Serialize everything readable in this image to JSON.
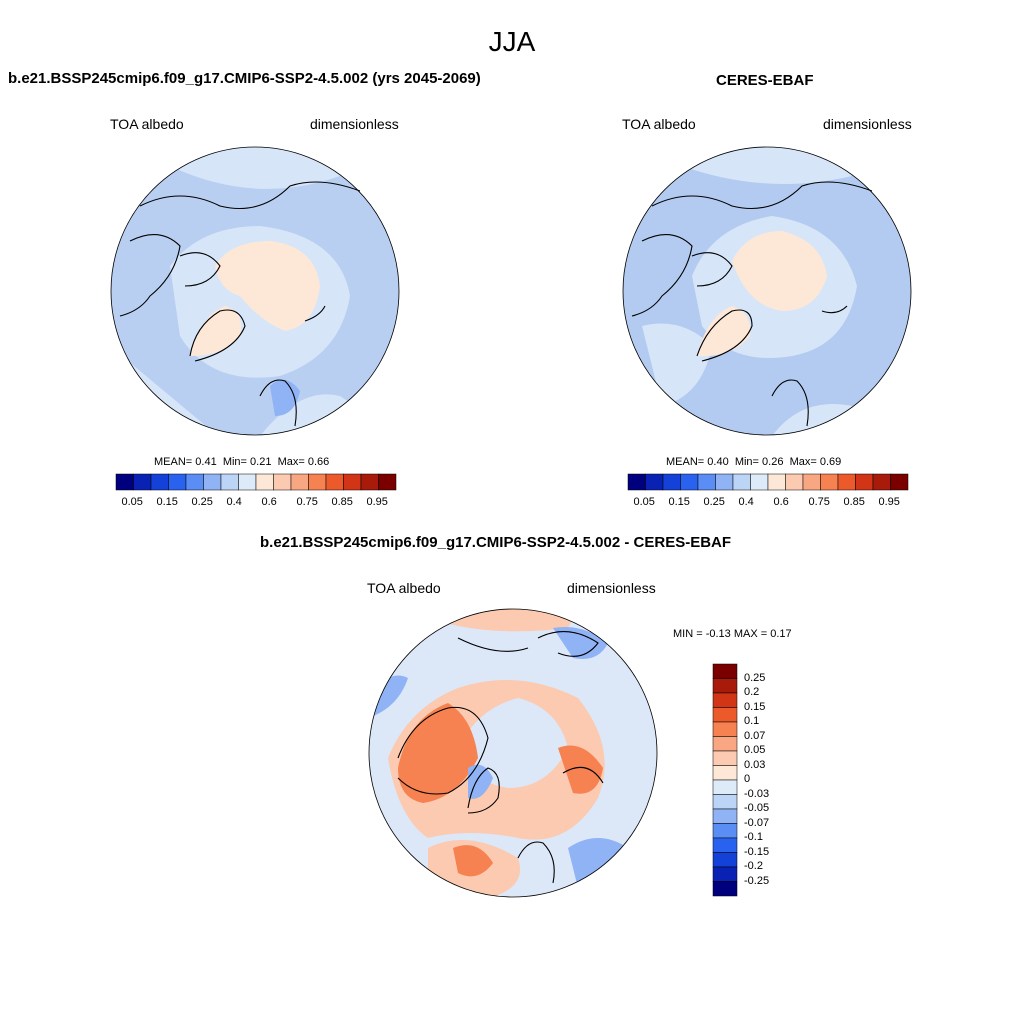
{
  "season": "JJA",
  "panels": {
    "model": {
      "title": "b.e21.BSSP245cmip6.f09_g17.CMIP6-SSP2-4.5.002 (yrs 2045-2069)",
      "variable": "TOA albedo",
      "units": "dimensionless",
      "stats": {
        "mean_label": "MEAN=",
        "mean": "0.41",
        "min_label": "Min=",
        "min": "0.21",
        "max_label": "Max=",
        "max": "0.66"
      }
    },
    "obs": {
      "title": "CERES-EBAF",
      "variable": "TOA albedo",
      "units": "dimensionless",
      "stats": {
        "mean_label": "MEAN=",
        "mean": "0.40",
        "min_label": "Min=",
        "min": "0.26",
        "max_label": "Max=",
        "max": "0.69"
      }
    },
    "diff": {
      "title": "b.e21.BSSP245cmip6.f09_g17.CMIP6-SSP2-4.5.002 - CERES-EBAF",
      "variable": "TOA albedo",
      "units": "dimensionless",
      "minmax": "MIN =  -0.13 MAX =   0.17"
    }
  },
  "colorbars": {
    "absolute": {
      "colors": [
        "#00007f",
        "#0a22b4",
        "#1441d8",
        "#2a62f0",
        "#5b8ef5",
        "#8fb3f5",
        "#bcd4f5",
        "#ddeaf8",
        "#fde8d8",
        "#fbcab0",
        "#f9a783",
        "#f68151",
        "#ec5a2c",
        "#d13515",
        "#a81a0a",
        "#7a0000"
      ],
      "tick_labels": [
        "0.05",
        "0.15",
        "0.25",
        "0.4",
        "0.6",
        "0.75",
        "0.85",
        "0.95"
      ]
    },
    "difference": {
      "colors": [
        "#7a0000",
        "#a81a0a",
        "#d13515",
        "#ec5a2c",
        "#f68151",
        "#f9a783",
        "#fbcab0",
        "#fde8d8",
        "#ddeaf8",
        "#bcd4f5",
        "#8fb3f5",
        "#5b8ef5",
        "#2a62f0",
        "#1441d8",
        "#0a22b4",
        "#00007f"
      ],
      "tick_labels": [
        "0.25",
        "0.2",
        "0.15",
        "0.1",
        "0.07",
        "0.05",
        "0.03",
        "0",
        "-0.03",
        "-0.05",
        "-0.07",
        "-0.1",
        "-0.15",
        "-0.2",
        "-0.25"
      ]
    }
  },
  "map_colors": {
    "ocean_model": "#b9cff2",
    "ocean_obs": "#b3cbf0",
    "light": "#d6e5f8",
    "ice": "#fde8d8",
    "diff_base": "#dce8f8",
    "diff_pos": "#fbcab0",
    "diff_pos2": "#f68151",
    "diff_neg": "#8fb3f5"
  }
}
